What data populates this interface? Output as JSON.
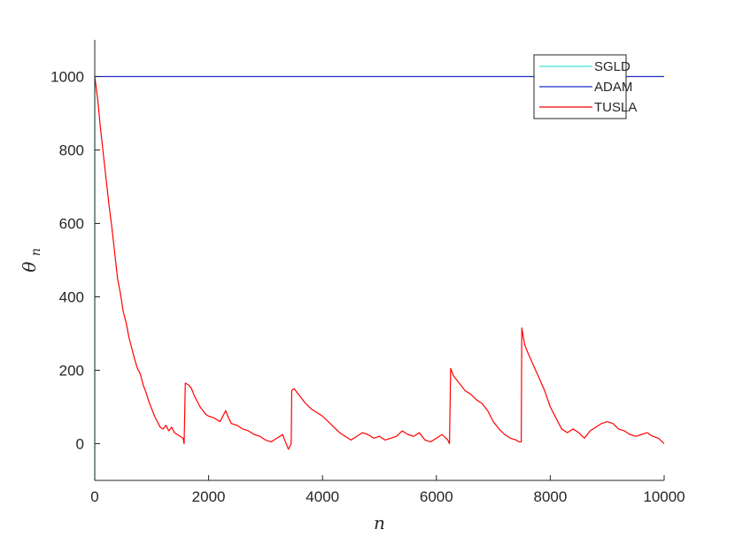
{
  "chart_data": {
    "type": "line",
    "title": "",
    "xlabel": "n",
    "ylabel_main": "θ",
    "ylabel_sub": "n",
    "xlim": [
      0,
      10000
    ],
    "ylim": [
      -100,
      1100
    ],
    "x_ticks": [
      0,
      2000,
      4000,
      6000,
      8000,
      10000
    ],
    "x_tick_labels": [
      "0",
      "2000",
      "4000",
      "6000",
      "8000",
      "10000"
    ],
    "y_ticks": [
      0,
      200,
      400,
      600,
      800,
      1000
    ],
    "y_tick_labels": [
      "0",
      "200",
      "400",
      "600",
      "800",
      "1000"
    ],
    "grid": false,
    "legend_position": "top-right",
    "series": [
      {
        "name": "SGLD",
        "color": "#40e0d0",
        "points": [
          [
            0,
            1000
          ],
          [
            0,
            -100
          ]
        ]
      },
      {
        "name": "ADAM",
        "color": "#1f2fc8",
        "points": [
          [
            0,
            1000
          ],
          [
            10000,
            1000
          ]
        ]
      },
      {
        "name": "TUSLA",
        "color": "#ff0000",
        "points": [
          [
            0,
            1000
          ],
          [
            50,
            940
          ],
          [
            100,
            860
          ],
          [
            150,
            790
          ],
          [
            200,
            720
          ],
          [
            250,
            650
          ],
          [
            300,
            590
          ],
          [
            350,
            520
          ],
          [
            400,
            450
          ],
          [
            450,
            410
          ],
          [
            500,
            360
          ],
          [
            550,
            330
          ],
          [
            600,
            290
          ],
          [
            650,
            260
          ],
          [
            700,
            230
          ],
          [
            750,
            205
          ],
          [
            800,
            190
          ],
          [
            850,
            160
          ],
          [
            900,
            140
          ],
          [
            950,
            115
          ],
          [
            1000,
            95
          ],
          [
            1050,
            75
          ],
          [
            1100,
            60
          ],
          [
            1150,
            45
          ],
          [
            1200,
            40
          ],
          [
            1250,
            50
          ],
          [
            1300,
            35
          ],
          [
            1350,
            45
          ],
          [
            1400,
            30
          ],
          [
            1450,
            25
          ],
          [
            1500,
            20
          ],
          [
            1550,
            15
          ],
          [
            1570,
            0
          ],
          [
            1590,
            165
          ],
          [
            1650,
            160
          ],
          [
            1700,
            150
          ],
          [
            1750,
            130
          ],
          [
            1800,
            115
          ],
          [
            1850,
            100
          ],
          [
            1900,
            90
          ],
          [
            1950,
            80
          ],
          [
            2000,
            75
          ],
          [
            2100,
            70
          ],
          [
            2200,
            60
          ],
          [
            2300,
            90
          ],
          [
            2350,
            70
          ],
          [
            2400,
            55
          ],
          [
            2500,
            50
          ],
          [
            2600,
            40
          ],
          [
            2700,
            35
          ],
          [
            2800,
            25
          ],
          [
            2900,
            20
          ],
          [
            3000,
            10
          ],
          [
            3100,
            5
          ],
          [
            3200,
            15
          ],
          [
            3300,
            25
          ],
          [
            3350,
            5
          ],
          [
            3400,
            -15
          ],
          [
            3450,
            0
          ],
          [
            3460,
            145
          ],
          [
            3500,
            150
          ],
          [
            3600,
            130
          ],
          [
            3700,
            110
          ],
          [
            3800,
            95
          ],
          [
            3900,
            85
          ],
          [
            4000,
            75
          ],
          [
            4100,
            60
          ],
          [
            4200,
            45
          ],
          [
            4300,
            30
          ],
          [
            4400,
            20
          ],
          [
            4500,
            10
          ],
          [
            4600,
            20
          ],
          [
            4700,
            30
          ],
          [
            4800,
            25
          ],
          [
            4900,
            15
          ],
          [
            5000,
            20
          ],
          [
            5100,
            10
          ],
          [
            5200,
            15
          ],
          [
            5300,
            20
          ],
          [
            5400,
            35
          ],
          [
            5500,
            25
          ],
          [
            5600,
            20
          ],
          [
            5700,
            30
          ],
          [
            5800,
            10
          ],
          [
            5900,
            5
          ],
          [
            6000,
            15
          ],
          [
            6100,
            25
          ],
          [
            6200,
            10
          ],
          [
            6230,
            0
          ],
          [
            6250,
            205
          ],
          [
            6300,
            185
          ],
          [
            6400,
            165
          ],
          [
            6500,
            145
          ],
          [
            6600,
            135
          ],
          [
            6700,
            120
          ],
          [
            6800,
            110
          ],
          [
            6900,
            90
          ],
          [
            7000,
            60
          ],
          [
            7100,
            40
          ],
          [
            7200,
            25
          ],
          [
            7300,
            15
          ],
          [
            7400,
            10
          ],
          [
            7450,
            5
          ],
          [
            7490,
            5
          ],
          [
            7500,
            315
          ],
          [
            7550,
            270
          ],
          [
            7600,
            250
          ],
          [
            7700,
            215
          ],
          [
            7800,
            180
          ],
          [
            7900,
            145
          ],
          [
            8000,
            100
          ],
          [
            8100,
            70
          ],
          [
            8200,
            40
          ],
          [
            8300,
            30
          ],
          [
            8400,
            40
          ],
          [
            8500,
            30
          ],
          [
            8600,
            15
          ],
          [
            8700,
            35
          ],
          [
            8800,
            45
          ],
          [
            8900,
            55
          ],
          [
            9000,
            60
          ],
          [
            9100,
            55
          ],
          [
            9200,
            40
          ],
          [
            9300,
            35
          ],
          [
            9400,
            25
          ],
          [
            9500,
            20
          ],
          [
            9600,
            25
          ],
          [
            9700,
            30
          ],
          [
            9800,
            20
          ],
          [
            9900,
            15
          ],
          [
            10000,
            0
          ]
        ]
      }
    ]
  }
}
